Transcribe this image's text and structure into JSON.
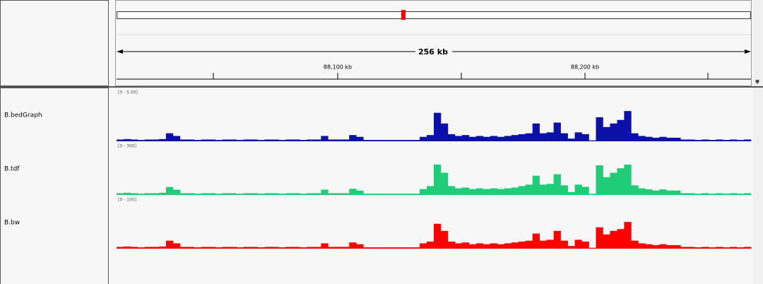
{
  "ruler": {
    "span_label": "256 kb",
    "tick_labels": [
      "88,100 kb",
      "88,200 kb"
    ]
  },
  "tracks": [
    {
      "name": "B.bedGraph",
      "range": {
        "min": 0,
        "max": 5,
        "label": "[0 - 5.00]"
      },
      "color": "#0a10a8",
      "values": [
        0.2,
        0.25,
        0.2,
        0.15,
        0.2,
        0.2,
        0.25,
        0.9,
        0.6,
        0.2,
        0.2,
        0.15,
        0.2,
        0.2,
        0.15,
        0.2,
        0.2,
        0.15,
        0.2,
        0.2,
        0.15,
        0.2,
        0.2,
        0.15,
        0.2,
        0.2,
        0.15,
        0.2,
        0.2,
        0.6,
        0.2,
        0.2,
        0.2,
        0.7,
        0.5,
        0.15,
        0.15,
        0.15,
        0.15,
        0.15,
        0.15,
        0.15,
        0.15,
        0.5,
        0.7,
        3.2,
        2.0,
        0.8,
        0.6,
        0.7,
        0.5,
        0.6,
        0.5,
        0.6,
        0.5,
        0.6,
        0.7,
        0.8,
        0.9,
        2.0,
        0.9,
        1.0,
        2.1,
        0.9,
        0.3,
        1.0,
        0.8,
        0.1,
        2.7,
        1.6,
        2.0,
        2.4,
        3.4,
        0.9,
        0.6,
        0.5,
        0.4,
        0.5,
        0.4,
        0.4,
        0.2,
        0.2,
        0.15,
        0.2,
        0.15,
        0.2,
        0.15,
        0.2,
        0.15,
        0.2
      ]
    },
    {
      "name": "B.tdf",
      "range": {
        "min": 0,
        "max": 300,
        "label": "[0 - 300]"
      },
      "color": "#20cc78",
      "values": [
        12,
        15,
        12,
        9,
        12,
        12,
        15,
        54,
        36,
        12,
        12,
        9,
        12,
        12,
        9,
        12,
        12,
        9,
        12,
        12,
        9,
        12,
        12,
        9,
        12,
        12,
        9,
        12,
        12,
        36,
        12,
        12,
        12,
        42,
        30,
        9,
        9,
        9,
        9,
        9,
        9,
        9,
        9,
        40,
        60,
        205,
        150,
        60,
        45,
        50,
        40,
        45,
        40,
        45,
        40,
        45,
        50,
        60,
        70,
        130,
        70,
        75,
        140,
        65,
        20,
        70,
        55,
        8,
        200,
        120,
        150,
        180,
        205,
        65,
        45,
        38,
        30,
        38,
        30,
        30,
        12,
        12,
        9,
        12,
        9,
        12,
        9,
        12,
        9,
        12
      ]
    },
    {
      "name": "B.bw",
      "range": {
        "min": 0,
        "max": 100,
        "label": "[0 - 100]"
      },
      "color": "#ff0000",
      "values": [
        4,
        5,
        4,
        3,
        4,
        4,
        5,
        18,
        12,
        4,
        4,
        3,
        4,
        4,
        3,
        4,
        4,
        3,
        4,
        4,
        3,
        4,
        4,
        3,
        4,
        4,
        3,
        4,
        4,
        12,
        4,
        4,
        4,
        14,
        10,
        3,
        3,
        3,
        3,
        3,
        3,
        3,
        3,
        12,
        16,
        56,
        40,
        16,
        12,
        14,
        10,
        12,
        10,
        12,
        10,
        12,
        14,
        16,
        18,
        34,
        18,
        20,
        40,
        18,
        6,
        20,
        16,
        2,
        48,
        32,
        40,
        44,
        60,
        18,
        12,
        10,
        8,
        10,
        8,
        8,
        4,
        4,
        3,
        4,
        3,
        4,
        3,
        4,
        3,
        4
      ]
    }
  ]
}
